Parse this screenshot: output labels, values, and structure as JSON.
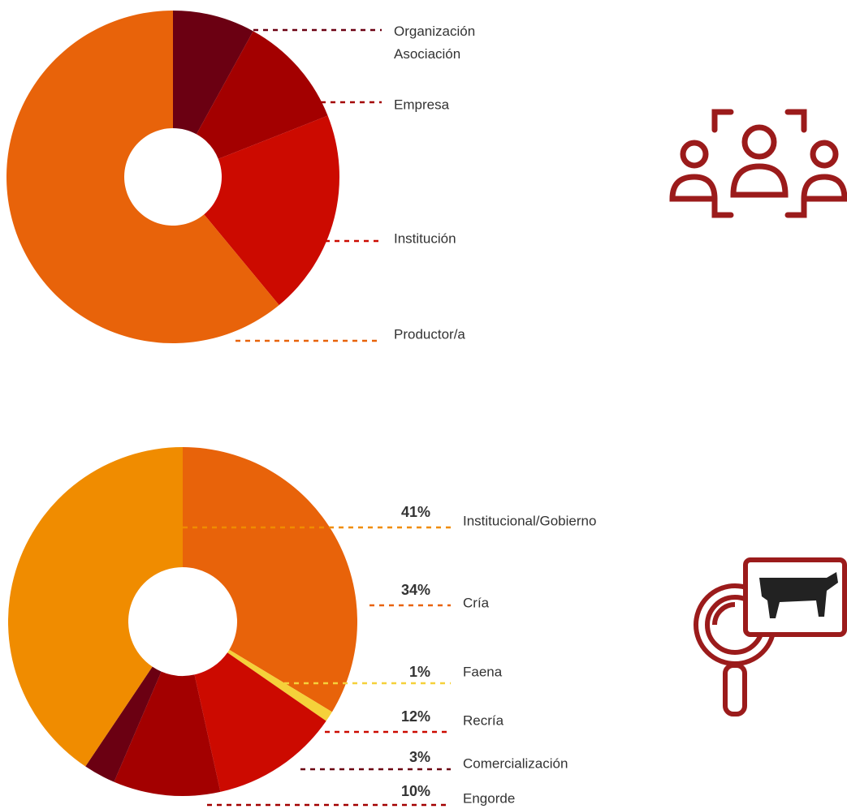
{
  "chart_data": [
    {
      "type": "donut",
      "categories": [
        "Organización Asociación",
        "Empresa",
        "Institución",
        "Productor/a"
      ],
      "values": [
        8,
        11,
        20,
        61
      ],
      "colors": [
        "#6b0012",
        "#a30000",
        "#cc0a00",
        "#e8630a"
      ]
    },
    {
      "type": "donut",
      "categories": [
        "Cría",
        "Faena",
        "Recría",
        "Engorde",
        "Comercialización",
        "Institucional/Gobierno"
      ],
      "values": [
        34,
        1,
        12,
        10,
        3,
        41
      ],
      "value_labels": [
        "34%",
        "1%",
        "12%",
        "10%",
        "3%",
        "41%"
      ],
      "colors": [
        "#e8630a",
        "#f5d13a",
        "#cc0a00",
        "#a30000",
        "#6b0012",
        "#f08c00"
      ]
    }
  ]
}
